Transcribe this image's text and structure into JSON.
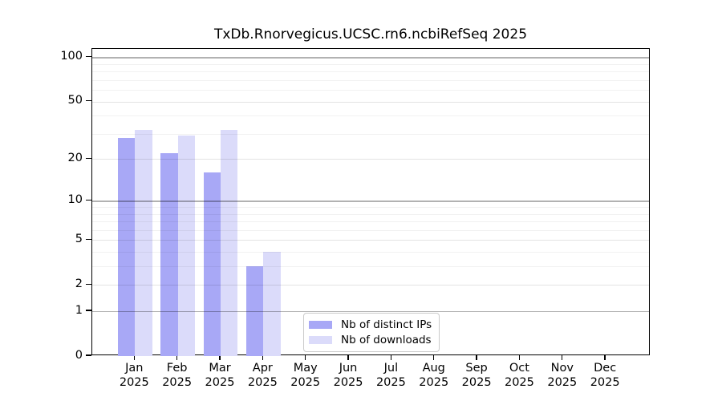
{
  "chart_data": {
    "type": "bar",
    "title": "TxDb.Rnorvegicus.UCSC.rn6.ncbiRefSeq 2025",
    "categories": [
      "Jan",
      "Feb",
      "Mar",
      "Apr",
      "May",
      "Jun",
      "Jul",
      "Aug",
      "Sep",
      "Oct",
      "Nov",
      "Dec"
    ],
    "x_tick_year_line": "2025",
    "series": [
      {
        "name": "Nb of distinct IPs",
        "color": "#a8a8f6",
        "values": [
          28,
          22,
          16,
          3,
          0,
          0,
          0,
          0,
          0,
          0,
          0,
          0
        ]
      },
      {
        "name": "Nb of downloads",
        "color": "#dbdbfa",
        "values": [
          32,
          29,
          32,
          4,
          0,
          0,
          0,
          0,
          0,
          0,
          0,
          0
        ]
      }
    ],
    "y_scale": "log10(x+1)",
    "y_ticks": [
      0,
      1,
      2,
      5,
      10,
      20,
      50,
      100
    ],
    "y_minor_gridlines": [
      3,
      4,
      6,
      7,
      8,
      9,
      30,
      40,
      60,
      70,
      80,
      90
    ],
    "y_decade_gridlines": [
      1,
      10,
      100
    ],
    "ylim": [
      0,
      114
    ],
    "grid": true,
    "legend_position": "lower center-left inside plot",
    "axis_color": "#000000",
    "background_color": "#ffffff"
  }
}
